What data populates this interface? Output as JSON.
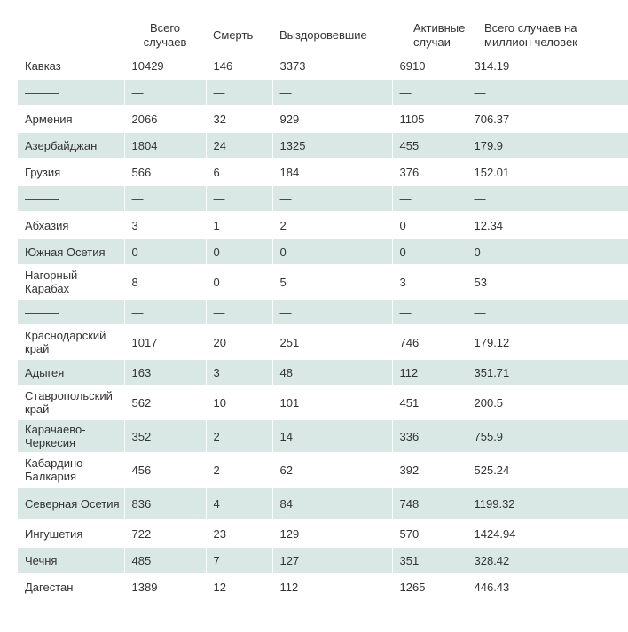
{
  "headers": [
    "",
    "Всего\nслучаев",
    "Смерть",
    "Выздоровевшие",
    "Активные\nслучаи",
    "Всего случаев на\nмиллион человек"
  ],
  "rows": [
    {
      "name": "Кавказ",
      "total": "10429",
      "deaths": "146",
      "recovered": "3373",
      "active": "6910",
      "per_million": "314.19"
    },
    {
      "name": "———",
      "total": "—",
      "deaths": "—",
      "recovered": "—",
      "active": "—",
      "per_million": "—"
    },
    {
      "name": "Армения",
      "total": "2066",
      "deaths": "32",
      "recovered": "929",
      "active": "1105",
      "per_million": "706.37"
    },
    {
      "name": "Азербайджан",
      "total": "1804",
      "deaths": "24",
      "recovered": "1325",
      "active": "455",
      "per_million": "179.9"
    },
    {
      "name": "Грузия",
      "total": "566",
      "deaths": "6",
      "recovered": "184",
      "active": "376",
      "per_million": "152.01"
    },
    {
      "name": "———",
      "total": "—",
      "deaths": "—",
      "recovered": "—",
      "active": "—",
      "per_million": "—"
    },
    {
      "name": "Абхазия",
      "total": "3",
      "deaths": "1",
      "recovered": "2",
      "active": "0",
      "per_million": "12.34"
    },
    {
      "name": "Южная Осетия",
      "total": "0",
      "deaths": "0",
      "recovered": "0",
      "active": "0",
      "per_million": "0"
    },
    {
      "name": "Нагорный Карабах",
      "total": "8",
      "deaths": "0",
      "recovered": "5",
      "active": "3",
      "per_million": "53"
    },
    {
      "name": "———",
      "total": "—",
      "deaths": "—",
      "recovered": "—",
      "active": "—",
      "per_million": "—"
    },
    {
      "name": "Краснодарский край",
      "total": "1017",
      "deaths": "20",
      "recovered": "251",
      "active": "746",
      "per_million": "179.12"
    },
    {
      "name": "Адыгея",
      "total": "163",
      "deaths": "3",
      "recovered": "48",
      "active": "112",
      "per_million": "351.71"
    },
    {
      "name": "Ставропольский край",
      "total": "562",
      "deaths": "10",
      "recovered": "101",
      "active": "451",
      "per_million": "200.5"
    },
    {
      "name": "Карачаево-Черкесия",
      "total": "352",
      "deaths": "2",
      "recovered": "14",
      "active": "336",
      "per_million": "755.9"
    },
    {
      "name": "Кабардино-Балкария",
      "total": "456",
      "deaths": "2",
      "recovered": "62",
      "active": "392",
      "per_million": "525.24"
    },
    {
      "name": "Северная Осетия",
      "total": "836",
      "deaths": "4",
      "recovered": "84",
      "active": "748",
      "per_million": "1199.32"
    },
    {
      "name": "Ингушетия",
      "total": "722",
      "deaths": "23",
      "recovered": "129",
      "active": "570",
      "per_million": "1424.94"
    },
    {
      "name": "Чечня",
      "total": "485",
      "deaths": "7",
      "recovered": "127",
      "active": "351",
      "per_million": "328.42"
    },
    {
      "name": "Дагестан",
      "total": "1389",
      "deaths": "12",
      "recovered": "112",
      "active": "1265",
      "per_million": "446.43"
    }
  ],
  "colors": {
    "row_shade": "#d9e8e5",
    "text": "#333333"
  }
}
